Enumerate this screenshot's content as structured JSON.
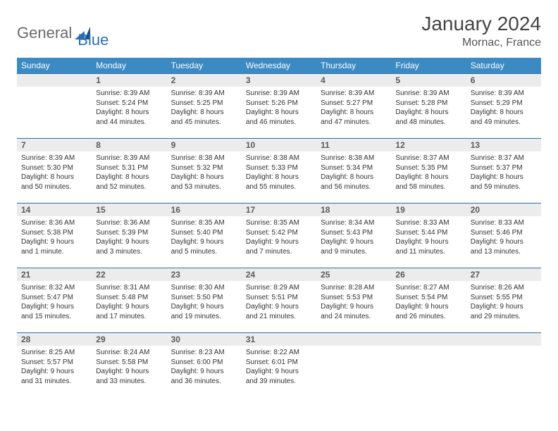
{
  "logo": {
    "word1": "General",
    "word2": "Blue",
    "word1_color": "#6a6a6a",
    "word2_color": "#2b6fb3"
  },
  "header": {
    "month_title": "January 2024",
    "location": "Mornac, France"
  },
  "colors": {
    "header_bg": "#3b8ac4",
    "header_text": "#ffffff",
    "daynum_bg": "#ececec",
    "daynum_border_top": "#2c6fa8",
    "body_text": "#333333"
  },
  "weekdays": [
    "Sunday",
    "Monday",
    "Tuesday",
    "Wednesday",
    "Thursday",
    "Friday",
    "Saturday"
  ],
  "weeks": [
    [
      {
        "n": "",
        "sr": "",
        "ss": "",
        "dl": ""
      },
      {
        "n": "1",
        "sr": "Sunrise: 8:39 AM",
        "ss": "Sunset: 5:24 PM",
        "dl": "Daylight: 8 hours and 44 minutes."
      },
      {
        "n": "2",
        "sr": "Sunrise: 8:39 AM",
        "ss": "Sunset: 5:25 PM",
        "dl": "Daylight: 8 hours and 45 minutes."
      },
      {
        "n": "3",
        "sr": "Sunrise: 8:39 AM",
        "ss": "Sunset: 5:26 PM",
        "dl": "Daylight: 8 hours and 46 minutes."
      },
      {
        "n": "4",
        "sr": "Sunrise: 8:39 AM",
        "ss": "Sunset: 5:27 PM",
        "dl": "Daylight: 8 hours and 47 minutes."
      },
      {
        "n": "5",
        "sr": "Sunrise: 8:39 AM",
        "ss": "Sunset: 5:28 PM",
        "dl": "Daylight: 8 hours and 48 minutes."
      },
      {
        "n": "6",
        "sr": "Sunrise: 8:39 AM",
        "ss": "Sunset: 5:29 PM",
        "dl": "Daylight: 8 hours and 49 minutes."
      }
    ],
    [
      {
        "n": "7",
        "sr": "Sunrise: 8:39 AM",
        "ss": "Sunset: 5:30 PM",
        "dl": "Daylight: 8 hours and 50 minutes."
      },
      {
        "n": "8",
        "sr": "Sunrise: 8:39 AM",
        "ss": "Sunset: 5:31 PM",
        "dl": "Daylight: 8 hours and 52 minutes."
      },
      {
        "n": "9",
        "sr": "Sunrise: 8:38 AM",
        "ss": "Sunset: 5:32 PM",
        "dl": "Daylight: 8 hours and 53 minutes."
      },
      {
        "n": "10",
        "sr": "Sunrise: 8:38 AM",
        "ss": "Sunset: 5:33 PM",
        "dl": "Daylight: 8 hours and 55 minutes."
      },
      {
        "n": "11",
        "sr": "Sunrise: 8:38 AM",
        "ss": "Sunset: 5:34 PM",
        "dl": "Daylight: 8 hours and 56 minutes."
      },
      {
        "n": "12",
        "sr": "Sunrise: 8:37 AM",
        "ss": "Sunset: 5:35 PM",
        "dl": "Daylight: 8 hours and 58 minutes."
      },
      {
        "n": "13",
        "sr": "Sunrise: 8:37 AM",
        "ss": "Sunset: 5:37 PM",
        "dl": "Daylight: 8 hours and 59 minutes."
      }
    ],
    [
      {
        "n": "14",
        "sr": "Sunrise: 8:36 AM",
        "ss": "Sunset: 5:38 PM",
        "dl": "Daylight: 9 hours and 1 minute."
      },
      {
        "n": "15",
        "sr": "Sunrise: 8:36 AM",
        "ss": "Sunset: 5:39 PM",
        "dl": "Daylight: 9 hours and 3 minutes."
      },
      {
        "n": "16",
        "sr": "Sunrise: 8:35 AM",
        "ss": "Sunset: 5:40 PM",
        "dl": "Daylight: 9 hours and 5 minutes."
      },
      {
        "n": "17",
        "sr": "Sunrise: 8:35 AM",
        "ss": "Sunset: 5:42 PM",
        "dl": "Daylight: 9 hours and 7 minutes."
      },
      {
        "n": "18",
        "sr": "Sunrise: 8:34 AM",
        "ss": "Sunset: 5:43 PM",
        "dl": "Daylight: 9 hours and 9 minutes."
      },
      {
        "n": "19",
        "sr": "Sunrise: 8:33 AM",
        "ss": "Sunset: 5:44 PM",
        "dl": "Daylight: 9 hours and 11 minutes."
      },
      {
        "n": "20",
        "sr": "Sunrise: 8:33 AM",
        "ss": "Sunset: 5:46 PM",
        "dl": "Daylight: 9 hours and 13 minutes."
      }
    ],
    [
      {
        "n": "21",
        "sr": "Sunrise: 8:32 AM",
        "ss": "Sunset: 5:47 PM",
        "dl": "Daylight: 9 hours and 15 minutes."
      },
      {
        "n": "22",
        "sr": "Sunrise: 8:31 AM",
        "ss": "Sunset: 5:48 PM",
        "dl": "Daylight: 9 hours and 17 minutes."
      },
      {
        "n": "23",
        "sr": "Sunrise: 8:30 AM",
        "ss": "Sunset: 5:50 PM",
        "dl": "Daylight: 9 hours and 19 minutes."
      },
      {
        "n": "24",
        "sr": "Sunrise: 8:29 AM",
        "ss": "Sunset: 5:51 PM",
        "dl": "Daylight: 9 hours and 21 minutes."
      },
      {
        "n": "25",
        "sr": "Sunrise: 8:28 AM",
        "ss": "Sunset: 5:53 PM",
        "dl": "Daylight: 9 hours and 24 minutes."
      },
      {
        "n": "26",
        "sr": "Sunrise: 8:27 AM",
        "ss": "Sunset: 5:54 PM",
        "dl": "Daylight: 9 hours and 26 minutes."
      },
      {
        "n": "27",
        "sr": "Sunrise: 8:26 AM",
        "ss": "Sunset: 5:55 PM",
        "dl": "Daylight: 9 hours and 29 minutes."
      }
    ],
    [
      {
        "n": "28",
        "sr": "Sunrise: 8:25 AM",
        "ss": "Sunset: 5:57 PM",
        "dl": "Daylight: 9 hours and 31 minutes."
      },
      {
        "n": "29",
        "sr": "Sunrise: 8:24 AM",
        "ss": "Sunset: 5:58 PM",
        "dl": "Daylight: 9 hours and 33 minutes."
      },
      {
        "n": "30",
        "sr": "Sunrise: 8:23 AM",
        "ss": "Sunset: 6:00 PM",
        "dl": "Daylight: 9 hours and 36 minutes."
      },
      {
        "n": "31",
        "sr": "Sunrise: 8:22 AM",
        "ss": "Sunset: 6:01 PM",
        "dl": "Daylight: 9 hours and 39 minutes."
      },
      {
        "n": "",
        "sr": "",
        "ss": "",
        "dl": ""
      },
      {
        "n": "",
        "sr": "",
        "ss": "",
        "dl": ""
      },
      {
        "n": "",
        "sr": "",
        "ss": "",
        "dl": ""
      }
    ]
  ]
}
